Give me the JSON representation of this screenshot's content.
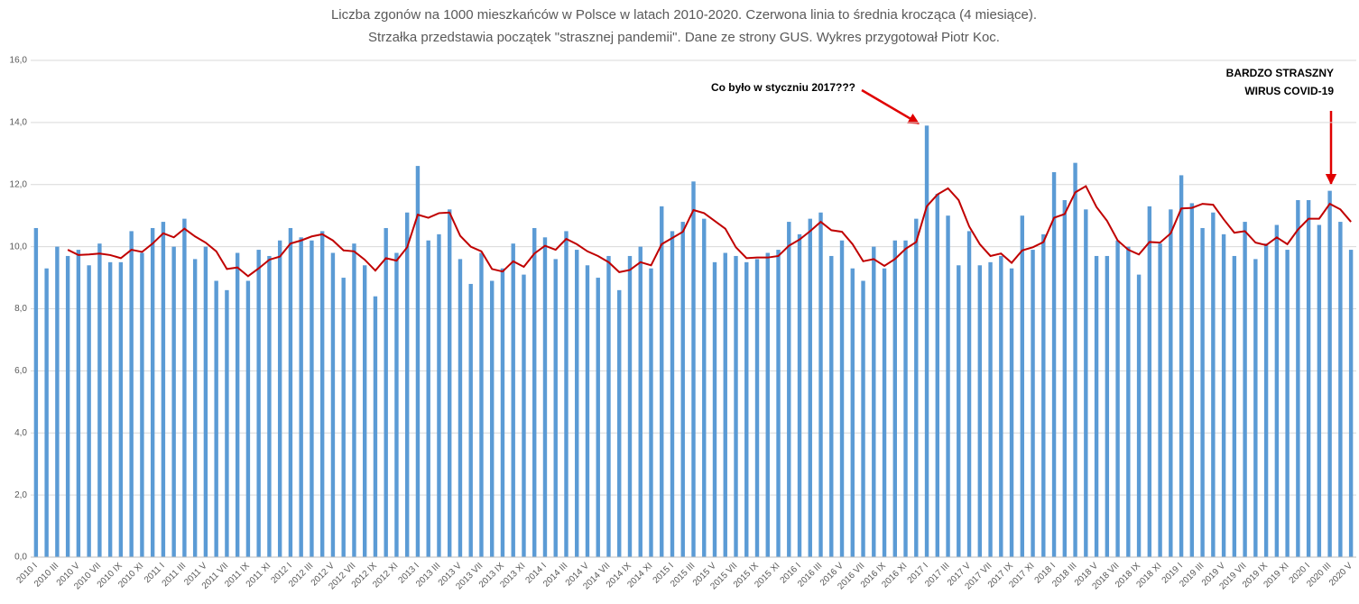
{
  "chart_data": {
    "type": "bar",
    "title": [
      "Liczba zgonów na 1000 mieszkańców w Polsce w latach 2010-2020. Czerwona linia to średnia krocząca (4 miesiące).",
      "Strzałka przedstawia początek \"strasznej pandemii\". Dane ze strony GUS. Wykres przygotował Piotr Koc."
    ],
    "annotations": [
      "Co było w styczniu 2017???",
      "BARDZO STRASZNY",
      "WIRUS COVID-19"
    ],
    "categories": [
      "2010 I",
      null,
      "2010 III",
      null,
      "2010 V",
      null,
      "2010 VII",
      null,
      "2010 IX",
      null,
      "2010 XI",
      null,
      "2011 I",
      null,
      "2011 III",
      null,
      "2011 V",
      null,
      "2011 VII",
      null,
      "2011 IX",
      null,
      "2011 XI",
      null,
      "2012 I",
      null,
      "2012 III",
      null,
      "2012 V",
      null,
      "2012 VII",
      null,
      "2012 IX",
      null,
      "2012 XI",
      null,
      "2013 I",
      null,
      "2013 III",
      null,
      "2013 V",
      null,
      "2013 VII",
      null,
      "2013 IX",
      null,
      "2013 XI",
      null,
      "2014 I",
      null,
      "2014 III",
      null,
      "2014 V",
      null,
      "2014 VII",
      null,
      "2014 IX",
      null,
      "2014 XI",
      null,
      "2015 I",
      null,
      "2015 III",
      null,
      "2015 V",
      null,
      "2015 VII",
      null,
      "2015 IX",
      null,
      "2015 XI",
      null,
      "2016 I",
      null,
      "2016 III",
      null,
      "2016 V",
      null,
      "2016 VII",
      null,
      "2016 IX",
      null,
      "2016 XI",
      null,
      "2017 I",
      null,
      "2017 III",
      null,
      "2017 V",
      null,
      "2017 VII",
      null,
      "2017 IX",
      null,
      "2017 XI",
      null,
      "2018 I",
      null,
      "2018 III",
      null,
      "2018 V",
      null,
      "2018 VII",
      null,
      "2018 IX",
      null,
      "2018 XI",
      null,
      "2019 I",
      null,
      "2019 III",
      null,
      "2019 V",
      null,
      "2019 VII",
      null,
      "2019 IX",
      null,
      "2019 XI",
      null,
      "2020 I",
      null,
      "2020 III",
      null,
      "2020 V"
    ],
    "series": [
      {
        "type": "bar",
        "color": "#5b9bd5",
        "values": [
          10.6,
          9.3,
          10.0,
          9.7,
          9.9,
          9.4,
          10.1,
          9.5,
          9.5,
          10.5,
          9.8,
          10.6,
          10.8,
          10.0,
          10.9,
          9.6,
          10.0,
          8.9,
          8.6,
          9.8,
          8.9,
          9.9,
          9.7,
          10.2,
          10.6,
          10.3,
          10.2,
          10.5,
          9.8,
          9.0,
          10.1,
          9.4,
          8.4,
          10.6,
          9.8,
          11.1,
          12.6,
          10.2,
          10.4,
          11.2,
          9.6,
          8.8,
          9.8,
          8.9,
          9.3,
          10.1,
          9.1,
          10.6,
          10.3,
          9.6,
          10.5,
          9.9,
          9.4,
          9.0,
          9.7,
          8.6,
          9.7,
          10.0,
          9.3,
          11.3,
          10.5,
          10.8,
          12.1,
          10.9,
          9.5,
          9.8,
          9.7,
          9.5,
          9.6,
          9.8,
          9.9,
          10.8,
          10.4,
          10.9,
          11.1,
          9.7,
          10.2,
          9.3,
          8.9,
          10.0,
          9.3,
          10.2,
          10.2,
          10.9,
          13.9,
          11.7,
          11.0,
          9.4,
          10.5,
          9.4,
          9.5,
          9.7,
          9.3,
          11.0,
          9.9,
          10.4,
          12.4,
          11.5,
          12.7,
          11.2,
          9.7,
          9.7,
          10.2,
          10.0,
          9.1,
          11.3,
          10.1,
          11.2,
          12.3,
          11.4,
          10.6,
          11.1,
          10.4,
          9.7,
          10.8,
          9.6,
          10.1,
          10.7,
          9.9,
          11.5,
          11.5,
          10.7,
          11.8,
          10.8,
          9.9
        ]
      },
      {
        "type": "line",
        "color": "#c00000",
        "values": [
          null,
          null,
          null,
          9.9,
          9.73,
          9.75,
          9.78,
          9.73,
          9.63,
          9.9,
          9.83,
          10.1,
          10.43,
          10.3,
          10.58,
          10.33,
          10.13,
          9.85,
          9.28,
          9.33,
          9.05,
          9.3,
          9.58,
          9.68,
          10.1,
          10.2,
          10.33,
          10.4,
          10.2,
          9.88,
          9.85,
          9.58,
          9.23,
          9.63,
          9.55,
          9.98,
          11.03,
          10.93,
          11.08,
          11.1,
          10.35,
          10.0,
          9.85,
          9.28,
          9.2,
          9.53,
          9.35,
          9.78,
          10.03,
          9.9,
          10.25,
          10.08,
          9.85,
          9.7,
          9.5,
          9.18,
          9.25,
          9.5,
          9.4,
          10.08,
          10.28,
          10.48,
          11.18,
          11.08,
          10.83,
          10.58,
          9.98,
          9.63,
          9.65,
          9.65,
          9.7,
          10.03,
          10.23,
          10.5,
          10.8,
          10.53,
          10.48,
          10.08,
          9.53,
          9.6,
          9.38,
          9.6,
          9.93,
          10.15,
          11.3,
          11.68,
          11.88,
          11.5,
          10.65,
          10.08,
          9.7,
          9.78,
          9.48,
          9.88,
          9.98,
          10.15,
          10.93,
          11.05,
          11.75,
          11.95,
          11.28,
          10.83,
          10.2,
          9.9,
          9.75,
          10.15,
          10.13,
          10.43,
          11.23,
          11.25,
          11.38,
          11.35,
          10.88,
          10.45,
          10.5,
          10.13,
          10.05,
          10.3,
          10.08,
          10.55,
          10.9,
          10.9,
          11.38,
          11.2,
          10.8
        ]
      }
    ],
    "ylim": [
      0,
      16
    ],
    "yticks": [
      {
        "value": 0,
        "label": "0,0"
      },
      {
        "value": 2,
        "label": "2,0"
      },
      {
        "value": 4,
        "label": "4,0"
      },
      {
        "value": 6,
        "label": "6,0"
      },
      {
        "value": 8,
        "label": "8,0"
      },
      {
        "value": 10,
        "label": "10,0"
      },
      {
        "value": 12,
        "label": "12,0"
      },
      {
        "value": 14,
        "label": "14,0"
      },
      {
        "value": 16,
        "label": "16,0"
      }
    ],
    "grid": true
  }
}
